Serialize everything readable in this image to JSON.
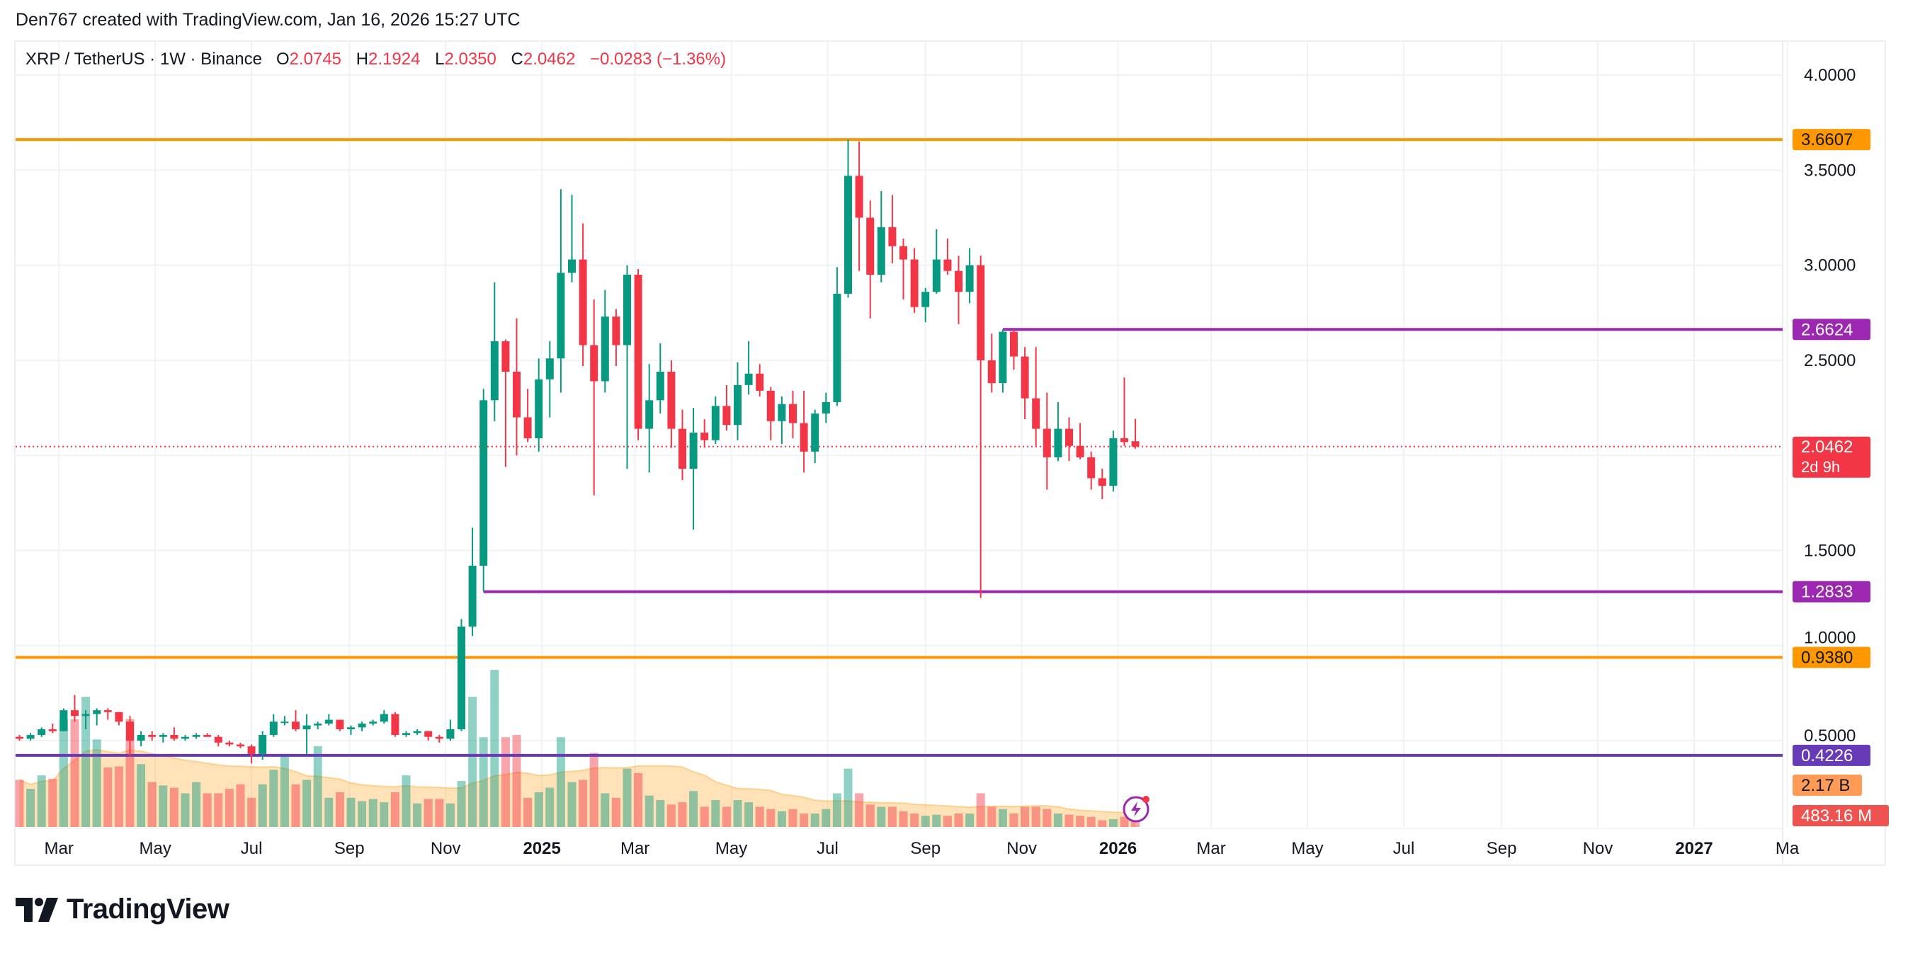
{
  "credit": "Den767 created with TradingView.com, Jan 16, 2026 15:27 UTC",
  "legend": {
    "symbol": "XRP / TetherUS · 1W · Binance",
    "o_label": "O",
    "o": "2.0745",
    "h_label": "H",
    "h": "2.1924",
    "l_label": "L",
    "l": "2.0350",
    "c_label": "C",
    "c": "2.0462",
    "change": "−0.0283 (−1.36%)"
  },
  "footer": {
    "brand": "TradingView"
  },
  "colors": {
    "up": "#089981",
    "down": "#f23645",
    "orange_line": "#ff9800",
    "purple_line": "#9c27b0",
    "indigo_line": "#673ab7",
    "volume_ma": "#ff9800"
  },
  "chart_data": {
    "type": "candlestick",
    "interval": "1W",
    "ylim": [
      0.0,
      4.2
    ],
    "grid": true,
    "y_ticks": [
      "4.0000",
      "3.5000",
      "3.0000",
      "2.5000",
      "1.5000",
      "1.0000",
      "0.5000"
    ],
    "x_ticks": [
      {
        "label": "Mar",
        "date": "2024-03-01"
      },
      {
        "label": "May",
        "date": "2024-05-01"
      },
      {
        "label": "Jul",
        "date": "2024-07-01"
      },
      {
        "label": "Sep",
        "date": "2024-09-01"
      },
      {
        "label": "Nov",
        "date": "2024-11-01"
      },
      {
        "label": "2025",
        "date": "2025-01-01",
        "bold": true
      },
      {
        "label": "Mar",
        "date": "2025-03-01"
      },
      {
        "label": "May",
        "date": "2025-05-01"
      },
      {
        "label": "Jul",
        "date": "2025-07-01"
      },
      {
        "label": "Sep",
        "date": "2025-09-01"
      },
      {
        "label": "Nov",
        "date": "2025-11-01"
      },
      {
        "label": "2026",
        "date": "2026-01-01",
        "bold": true
      },
      {
        "label": "Mar",
        "date": "2026-03-01"
      },
      {
        "label": "May",
        "date": "2026-05-01"
      },
      {
        "label": "Jul",
        "date": "2026-07-01"
      },
      {
        "label": "Sep",
        "date": "2026-09-01"
      },
      {
        "label": "Nov",
        "date": "2026-11-01"
      },
      {
        "label": "2027",
        "date": "2027-01-01",
        "bold": true
      },
      {
        "label": "Ma",
        "date": "2027-03-01"
      }
    ],
    "horizontal_lines": [
      {
        "price": 3.6607,
        "label": "3.6607",
        "color": "#ff9800",
        "from": null
      },
      {
        "price": 2.6624,
        "label": "2.6624",
        "color": "#9c27b0",
        "from": "2025-10-20"
      },
      {
        "price": 1.2833,
        "label": "1.2833",
        "color": "#9c27b0",
        "from": "2024-11-25"
      },
      {
        "price": 0.938,
        "label": "0.9380",
        "color": "#ff9800",
        "from": null
      },
      {
        "price": 0.4226,
        "label": "0.4226",
        "color": "#673ab7",
        "from": null
      }
    ],
    "last_price": {
      "price": 2.0462,
      "label": "2.0462",
      "countdown": "2d 9h"
    },
    "volume": {
      "ma_label": "2.17 B",
      "ma_value_b": 2.17,
      "last_label": "483.16 M",
      "unit": "B"
    },
    "candles_columns": [
      "week",
      "open",
      "high",
      "low",
      "close",
      "volume_b"
    ],
    "candles": [
      [
        "2024-02-05",
        0.52,
        0.53,
        0.5,
        0.51,
        2.1
      ],
      [
        "2024-02-12",
        0.51,
        0.54,
        0.5,
        0.53,
        1.7
      ],
      [
        "2024-02-19",
        0.53,
        0.57,
        0.52,
        0.56,
        2.3
      ],
      [
        "2024-02-26",
        0.56,
        0.59,
        0.54,
        0.55,
        2.15
      ],
      [
        "2024-03-04",
        0.55,
        0.67,
        0.55,
        0.66,
        4.8
      ],
      [
        "2024-03-11",
        0.66,
        0.74,
        0.6,
        0.63,
        4.8
      ],
      [
        "2024-03-18",
        0.63,
        0.66,
        0.56,
        0.64,
        5.8
      ],
      [
        "2024-03-25",
        0.64,
        0.67,
        0.58,
        0.66,
        3.9
      ],
      [
        "2024-04-01",
        0.66,
        0.67,
        0.61,
        0.65,
        2.65
      ],
      [
        "2024-04-08",
        0.65,
        0.65,
        0.58,
        0.6,
        2.7
      ],
      [
        "2024-04-15",
        0.6,
        0.63,
        0.42,
        0.5,
        4.8
      ],
      [
        "2024-04-22",
        0.5,
        0.55,
        0.47,
        0.53,
        2.8
      ],
      [
        "2024-04-29",
        0.53,
        0.55,
        0.5,
        0.52,
        2.0
      ],
      [
        "2024-05-06",
        0.52,
        0.54,
        0.49,
        0.53,
        1.85
      ],
      [
        "2024-05-13",
        0.53,
        0.57,
        0.5,
        0.51,
        1.75
      ],
      [
        "2024-05-20",
        0.51,
        0.53,
        0.5,
        0.52,
        1.5
      ],
      [
        "2024-05-27",
        0.52,
        0.54,
        0.51,
        0.53,
        2.0
      ],
      [
        "2024-06-03",
        0.53,
        0.54,
        0.52,
        0.52,
        1.5
      ],
      [
        "2024-06-10",
        0.52,
        0.53,
        0.47,
        0.49,
        1.5
      ],
      [
        "2024-06-17",
        0.49,
        0.5,
        0.47,
        0.48,
        1.7
      ],
      [
        "2024-06-24",
        0.48,
        0.49,
        0.46,
        0.47,
        1.9
      ],
      [
        "2024-07-01",
        0.47,
        0.48,
        0.38,
        0.43,
        1.3
      ],
      [
        "2024-07-08",
        0.43,
        0.55,
        0.4,
        0.53,
        1.9
      ],
      [
        "2024-07-15",
        0.53,
        0.64,
        0.52,
        0.6,
        2.55
      ],
      [
        "2024-07-22",
        0.6,
        0.63,
        0.58,
        0.6,
        3.25
      ],
      [
        "2024-07-29",
        0.6,
        0.66,
        0.55,
        0.56,
        1.9
      ],
      [
        "2024-08-05",
        0.56,
        0.64,
        0.43,
        0.58,
        2.1
      ],
      [
        "2024-08-12",
        0.58,
        0.6,
        0.56,
        0.59,
        3.6
      ],
      [
        "2024-08-19",
        0.59,
        0.64,
        0.58,
        0.61,
        1.3
      ],
      [
        "2024-08-26",
        0.61,
        0.61,
        0.55,
        0.56,
        1.55
      ],
      [
        "2024-09-02",
        0.56,
        0.58,
        0.53,
        0.57,
        1.3
      ],
      [
        "2024-09-09",
        0.57,
        0.6,
        0.55,
        0.59,
        1.15
      ],
      [
        "2024-09-16",
        0.59,
        0.61,
        0.58,
        0.6,
        1.25
      ],
      [
        "2024-09-23",
        0.6,
        0.66,
        0.59,
        0.64,
        1.1
      ],
      [
        "2024-09-30",
        0.64,
        0.65,
        0.52,
        0.53,
        1.55
      ],
      [
        "2024-10-07",
        0.53,
        0.55,
        0.52,
        0.54,
        2.3
      ],
      [
        "2024-10-14",
        0.54,
        0.56,
        0.53,
        0.55,
        1.05
      ],
      [
        "2024-10-21",
        0.55,
        0.55,
        0.5,
        0.52,
        1.25
      ],
      [
        "2024-10-28",
        0.52,
        0.53,
        0.49,
        0.51,
        1.25
      ],
      [
        "2024-11-04",
        0.51,
        0.61,
        0.5,
        0.56,
        1.05
      ],
      [
        "2024-11-11",
        0.56,
        1.14,
        0.55,
        1.1,
        2.05
      ],
      [
        "2024-11-18",
        1.1,
        1.62,
        1.05,
        1.42,
        5.8
      ],
      [
        "2024-11-25",
        1.42,
        2.35,
        1.2833,
        2.29,
        4.0
      ],
      [
        "2024-12-02",
        2.29,
        2.91,
        2.18,
        2.6,
        7.0
      ],
      [
        "2024-12-09",
        2.6,
        2.61,
        1.94,
        2.44,
        4.0
      ],
      [
        "2024-12-16",
        2.44,
        2.72,
        2.0,
        2.2,
        4.1
      ],
      [
        "2024-12-23",
        2.2,
        2.35,
        2.07,
        2.09,
        1.3
      ],
      [
        "2024-12-30",
        2.09,
        2.51,
        2.02,
        2.4,
        1.55
      ],
      [
        "2025-01-06",
        2.4,
        2.6,
        2.2,
        2.51,
        1.75
      ],
      [
        "2025-01-13",
        2.51,
        3.4,
        2.33,
        2.96,
        4.0
      ],
      [
        "2025-01-20",
        2.96,
        3.37,
        2.91,
        3.03,
        2.0
      ],
      [
        "2025-01-27",
        3.03,
        3.22,
        2.47,
        2.58,
        2.1
      ],
      [
        "2025-02-03",
        2.58,
        2.82,
        1.79,
        2.39,
        3.3
      ],
      [
        "2025-02-10",
        2.39,
        2.87,
        2.33,
        2.73,
        1.5
      ],
      [
        "2025-02-17",
        2.73,
        2.77,
        2.47,
        2.58,
        1.3
      ],
      [
        "2025-02-24",
        2.58,
        3.0,
        1.93,
        2.95,
        2.6
      ],
      [
        "2025-03-03",
        2.95,
        2.98,
        2.08,
        2.14,
        2.4
      ],
      [
        "2025-03-10",
        2.14,
        2.48,
        1.91,
        2.29,
        1.4
      ],
      [
        "2025-03-17",
        2.29,
        2.59,
        2.22,
        2.44,
        1.2
      ],
      [
        "2025-03-24",
        2.44,
        2.5,
        2.04,
        2.14,
        1.0
      ],
      [
        "2025-03-31",
        2.14,
        2.24,
        1.87,
        1.93,
        1.1
      ],
      [
        "2025-04-07",
        1.93,
        2.25,
        1.61,
        2.12,
        1.6
      ],
      [
        "2025-04-14",
        2.12,
        2.19,
        2.04,
        2.08,
        0.9
      ],
      [
        "2025-04-21",
        2.08,
        2.31,
        2.06,
        2.26,
        1.2
      ],
      [
        "2025-04-28",
        2.26,
        2.37,
        2.13,
        2.16,
        0.9
      ],
      [
        "2025-05-05",
        2.16,
        2.49,
        2.08,
        2.37,
        1.2
      ],
      [
        "2025-05-12",
        2.37,
        2.6,
        2.32,
        2.43,
        1.1
      ],
      [
        "2025-05-19",
        2.43,
        2.48,
        2.31,
        2.34,
        0.9
      ],
      [
        "2025-05-26",
        2.34,
        2.36,
        2.08,
        2.18,
        0.8
      ],
      [
        "2025-06-02",
        2.18,
        2.31,
        2.06,
        2.27,
        0.7
      ],
      [
        "2025-06-09",
        2.27,
        2.34,
        2.09,
        2.17,
        0.8
      ],
      [
        "2025-06-16",
        2.17,
        2.34,
        1.91,
        2.02,
        0.6
      ],
      [
        "2025-06-23",
        2.02,
        2.24,
        1.96,
        2.22,
        0.6
      ],
      [
        "2025-06-30",
        2.22,
        2.33,
        2.17,
        2.28,
        0.8
      ],
      [
        "2025-07-07",
        2.28,
        2.99,
        2.26,
        2.85,
        1.5
      ],
      [
        "2025-07-14",
        2.85,
        3.6607,
        2.83,
        3.47,
        2.6
      ],
      [
        "2025-07-21",
        3.47,
        3.65,
        2.97,
        3.25,
        1.5
      ],
      [
        "2025-07-28",
        3.25,
        3.34,
        2.72,
        2.95,
        1.0
      ],
      [
        "2025-08-04",
        2.95,
        3.39,
        2.91,
        3.2,
        0.9
      ],
      [
        "2025-08-11",
        3.2,
        3.37,
        3.01,
        3.1,
        0.9
      ],
      [
        "2025-08-18",
        3.1,
        3.14,
        2.82,
        3.03,
        0.7
      ],
      [
        "2025-08-25",
        3.03,
        3.09,
        2.75,
        2.78,
        0.6
      ],
      [
        "2025-09-01",
        2.78,
        2.88,
        2.7,
        2.86,
        0.5
      ],
      [
        "2025-09-08",
        2.86,
        3.19,
        2.85,
        3.03,
        0.55
      ],
      [
        "2025-09-15",
        3.03,
        3.14,
        2.95,
        2.97,
        0.5
      ],
      [
        "2025-09-22",
        2.97,
        3.05,
        2.69,
        2.86,
        0.6
      ],
      [
        "2025-09-29",
        2.86,
        3.09,
        2.8,
        3.0,
        0.6
      ],
      [
        "2025-10-06",
        3.0,
        3.05,
        1.25,
        2.5,
        1.5
      ],
      [
        "2025-10-13",
        2.5,
        2.64,
        2.33,
        2.38,
        0.9
      ],
      [
        "2025-10-20",
        2.38,
        2.6624,
        2.33,
        2.65,
        0.8
      ],
      [
        "2025-10-27",
        2.65,
        2.66,
        2.45,
        2.52,
        0.6
      ],
      [
        "2025-11-03",
        2.52,
        2.57,
        2.19,
        2.3,
        0.9
      ],
      [
        "2025-11-10",
        2.3,
        2.57,
        2.05,
        2.14,
        0.9
      ],
      [
        "2025-11-17",
        2.14,
        2.33,
        1.82,
        1.99,
        0.8
      ],
      [
        "2025-11-24",
        1.99,
        2.28,
        1.97,
        2.14,
        0.6
      ],
      [
        "2025-12-01",
        2.14,
        2.2,
        1.97,
        2.05,
        0.55
      ],
      [
        "2025-12-08",
        2.05,
        2.17,
        1.98,
        1.99,
        0.5
      ],
      [
        "2025-12-15",
        1.99,
        2.02,
        1.82,
        1.88,
        0.45
      ],
      [
        "2025-12-22",
        1.88,
        1.93,
        1.77,
        1.84,
        0.3
      ],
      [
        "2025-12-29",
        1.84,
        2.13,
        1.81,
        2.09,
        0.35
      ],
      [
        "2026-01-05",
        2.09,
        2.41,
        2.05,
        2.07,
        0.45
      ],
      [
        "2026-01-12",
        2.0745,
        2.1924,
        2.035,
        2.0462,
        0.48316
      ]
    ]
  }
}
